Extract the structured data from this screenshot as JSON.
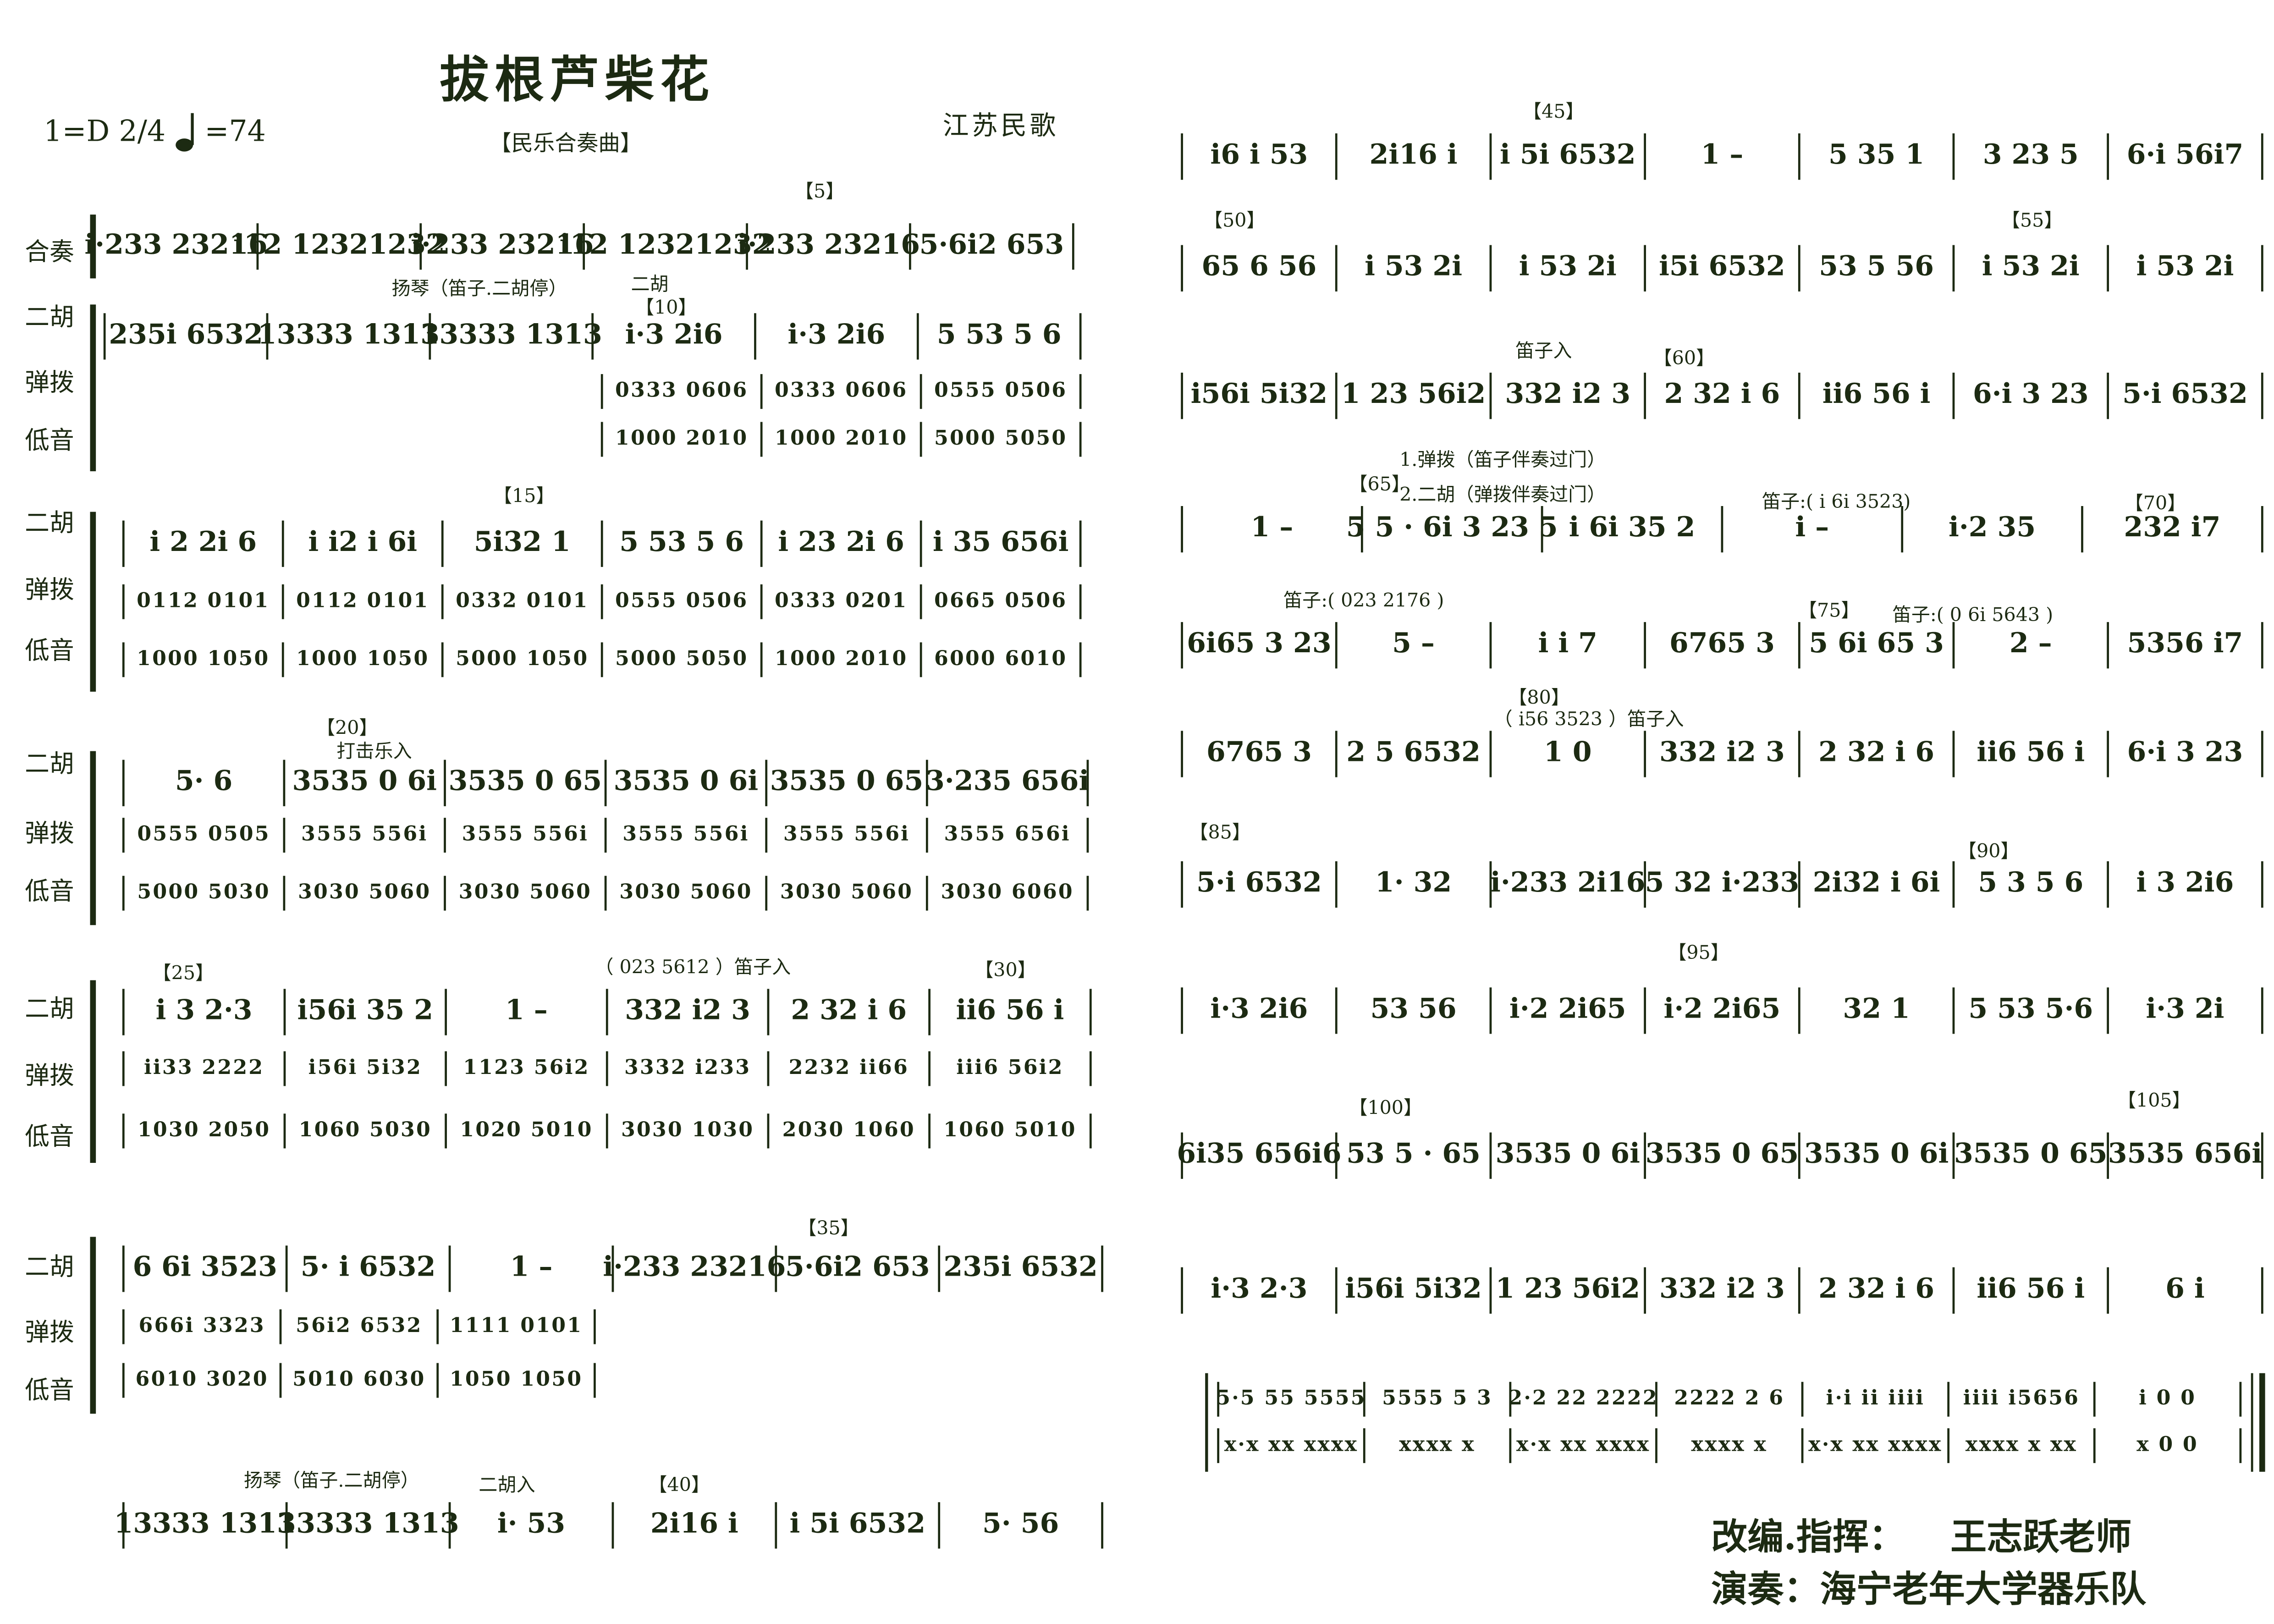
{
  "header": {
    "title": "拔根芦柴花",
    "subtitle": "【民乐合奏曲】",
    "key": "1=D 2/4",
    "tempo": "=74",
    "origin": "江苏民歌"
  },
  "left_systems": [
    {
      "labels": [
        "合奏"
      ],
      "rows": [
        [
          "i·233 23216",
          "i12 12321232",
          "i·233 23216",
          "i12 12321232",
          "i·233 23216",
          "5·6i2 653"
        ]
      ],
      "annotations": [
        "【5】"
      ]
    },
    {
      "labels": [
        "二胡",
        "弹拨",
        "低音"
      ],
      "rows": [
        [
          "235i 6532",
          "13333 1313",
          "13333 1313",
          "i·3 2i6",
          "i·3 2i6",
          "5 53 5 6"
        ],
        [
          "0333 0606",
          "0333 0606",
          "0555 0506"
        ],
        [
          "1000 2010",
          "1000 2010",
          "5000 5050"
        ]
      ],
      "annotations": [
        "扬琴（笛子.二胡停）",
        "二胡",
        "【10】"
      ]
    },
    {
      "labels": [
        "二胡",
        "弹拨",
        "低音"
      ],
      "rows": [
        [
          "i 2 2i 6",
          "i i2 i 6i",
          "5i32 1",
          "5 53 5 6",
          "i 23 2i 6",
          "i 35 656i"
        ],
        [
          "0112 0101",
          "0112 0101",
          "0332 0101",
          "0555 0506",
          "0333 0201",
          "0665 0506"
        ],
        [
          "1000 1050",
          "1000 1050",
          "5000 1050",
          "5000 5050",
          "1000 2010",
          "6000 6010"
        ]
      ],
      "annotations": [
        "【15】"
      ]
    },
    {
      "labels": [
        "二胡",
        "弹拨",
        "低音"
      ],
      "rows": [
        [
          "5· 6",
          "3535 0 6i",
          "3535 0 65",
          "3535 0 6i",
          "3535 0 65",
          "3·235 656i"
        ],
        [
          "0555 0505",
          "3555 556i",
          "3555 556i",
          "3555 556i",
          "3555 556i",
          "3555 656i"
        ],
        [
          "5000 5030",
          "3030 5060",
          "3030 5060",
          "3030 5060",
          "3030 5060",
          "3030 6060"
        ]
      ],
      "annotations": [
        "【20】",
        "打击乐入"
      ]
    },
    {
      "labels": [
        "二胡",
        "弹拨",
        "低音"
      ],
      "rows": [
        [
          "i 3 2·3",
          "i56i 35 2",
          "1 –",
          "332 i2 3",
          "2 32 i 6",
          "ii6 56 i"
        ],
        [
          "ii33 2222",
          "i56i 5i32",
          "1123 56i2",
          "3332 i233",
          "2232 ii66",
          "iii6 56i2"
        ],
        [
          "1030 2050",
          "1060 5030",
          "1020 5010",
          "3030 1030",
          "2030 1060",
          "1060 5010"
        ]
      ],
      "annotations": [
        "【25】",
        "（ 023 5612 ）笛子入",
        "【30】"
      ]
    },
    {
      "labels": [
        "二胡",
        "弹拨",
        "低音"
      ],
      "rows": [
        [
          "6 6i 3523",
          "5· i 6532",
          "1 –",
          "i·233 23216",
          "5·6i2 653",
          "235i 6532"
        ],
        [
          "666i 3323",
          "56i2 6532",
          "1111 0101"
        ],
        [
          "6010 3020",
          "5010 6030",
          "1050 1050"
        ]
      ],
      "annotations": [
        "【35】"
      ]
    },
    {
      "labels": [],
      "rows": [
        [
          "13333 1313",
          "13333 1313",
          "i· 53",
          "2i16 i",
          "i 5i 6532",
          "5· 56"
        ]
      ],
      "annotations": [
        "扬琴（笛子.二胡停）",
        "二胡入",
        "【40】"
      ]
    }
  ],
  "right_systems": [
    {
      "rows": [
        [
          "i6 i 53",
          "2i16 i",
          "i 5i 6532",
          "1 –",
          "5 35 1",
          "3 23 5",
          "6·i 56i7"
        ]
      ],
      "annotations": [
        "【45】"
      ]
    },
    {
      "rows": [
        [
          "65 6 56",
          "i 53 2i",
          "i 53 2i",
          "i5i 6532",
          "53 5 56",
          "i 53 2i",
          "i 53 2i"
        ]
      ],
      "annotations": [
        "【50】",
        "【55】"
      ]
    },
    {
      "rows": [
        [
          "i56i 5i32",
          "1 23 56i2",
          "332 i2 3",
          "2 32 i 6",
          "ii6 56 i",
          "6·i 3 23",
          "5·i 6532"
        ]
      ],
      "annotations": [
        "笛子入",
        "【60】"
      ]
    },
    {
      "rows": [
        [
          "1 –",
          "5 5 · 6i 3 23 5",
          "i 6i 35 2",
          "i –",
          "i·2 35",
          "232 i7"
        ]
      ],
      "annotations": [
        "1.弹拨（笛子伴奏过门）",
        "2.二胡（弹拨伴奏过门）",
        "【65】",
        "笛子:( i 6i 3523)",
        "【70】"
      ]
    },
    {
      "rows": [
        [
          "6i65 3 23",
          "5 –",
          "i i 7",
          "6765 3",
          "5 6i 65 3",
          "2 –",
          "5356 i7"
        ]
      ],
      "annotations": [
        "笛子:( 023 2176 )",
        "【75】",
        "笛子:( 0 6i 5643 )"
      ]
    },
    {
      "rows": [
        [
          "6765 3",
          "2 5 6532",
          "1 0",
          "332 i2 3",
          "2 32 i 6",
          "ii6 56 i",
          "6·i 3 23"
        ]
      ],
      "annotations": [
        "【80】",
        "（ i56 3523 ）笛子入"
      ]
    },
    {
      "rows": [
        [
          "5·i 6532",
          "1· 32",
          "i·233 2i16",
          "5 32 i·233",
          "2i32 i 6i",
          "5 3 5 6",
          "i 3 2i6"
        ]
      ],
      "annotations": [
        "【85】",
        "【90】"
      ]
    },
    {
      "rows": [
        [
          "i·3 2i6",
          "53 56",
          "i·2 2i65",
          "i·2 2i65",
          "32 1",
          "5 53 5·6",
          "i·3 2i"
        ]
      ],
      "annotations": [
        "【95】"
      ]
    },
    {
      "rows": [
        [
          "6i35 656i6",
          "53 5 · 65",
          "3535 0 6i",
          "3535 0 65",
          "3535 0 6i",
          "3535 0 65",
          "3535 656i"
        ]
      ],
      "annotations": [
        "【100】",
        "【105】"
      ]
    },
    {
      "rows": [
        [
          "i·3 2·3",
          "i56i 5i32",
          "1 23 56i2",
          "332 i2 3",
          "2 32 i 6",
          "ii6 56 i",
          "6 i"
        ]
      ],
      "annotations": []
    },
    {
      "rows": [
        [
          "5·5 55 5555",
          "5555 5 3",
          "2·2 22 2222",
          "2222 2 6",
          "i·i ii iiii",
          "iiii i5656",
          "i 0 0"
        ],
        [
          "x·x xx xxxx",
          "xxxx x",
          "x·x xx xxxx",
          "xxxx x",
          "x·x xx xxxx",
          "xxxx x xx",
          "x 0 0"
        ]
      ],
      "annotations": []
    }
  ],
  "credits": {
    "arranger_label": "改编.指挥：",
    "arranger": "王志跃老师",
    "performer": "演奏：海宁老年大学器乐队"
  }
}
